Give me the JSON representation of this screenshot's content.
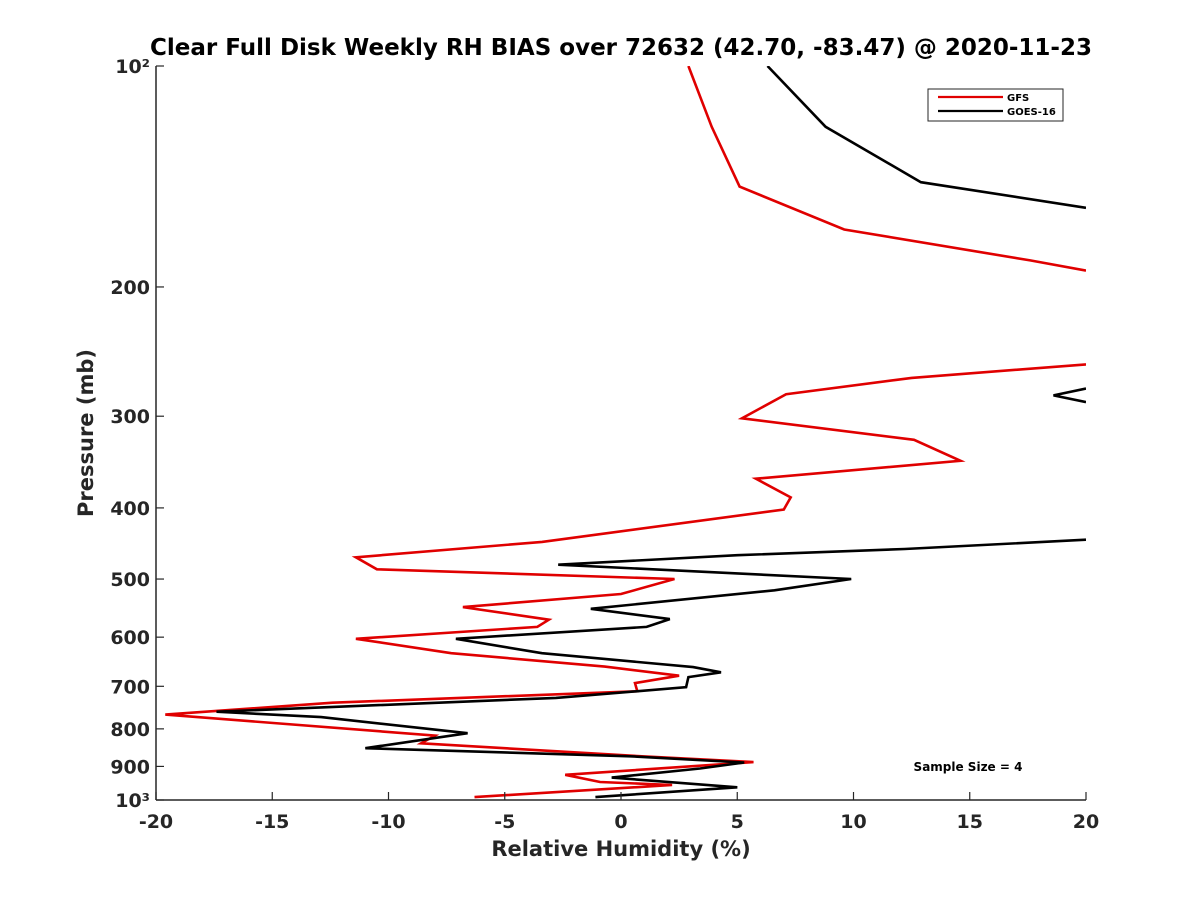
{
  "chart_data": {
    "type": "line",
    "title": "Clear Full Disk Weekly RH BIAS over 72632 (42.70, -83.47) @ 2020-11-23",
    "xlabel": "Relative Humidity (%)",
    "ylabel": "Pressure (mb)",
    "xlim": [
      -20,
      20
    ],
    "ylim": [
      100,
      1000
    ],
    "y_scale": "log",
    "y_reversed": true,
    "grid": false,
    "legend_position": "top-right",
    "x_ticks": [
      -20,
      -15,
      -10,
      -5,
      0,
      5,
      10,
      15,
      20
    ],
    "x_tick_labels": [
      "-20",
      "-15",
      "-10",
      "-5",
      "0",
      "5",
      "10",
      "15",
      "20"
    ],
    "y_ticks": [
      100,
      200,
      300,
      400,
      500,
      600,
      700,
      800,
      900,
      1000
    ],
    "y_tick_labels": [
      "10²",
      "200",
      "300",
      "400",
      "500",
      "600",
      "700",
      "800",
      "900",
      "10³"
    ],
    "annotation": "Sample Size = 4",
    "series": [
      {
        "name": "GFS",
        "color": "#e00000",
        "segments": [
          [
            {
              "x": 2.9,
              "y": 100
            },
            {
              "x": 3.9,
              "y": 121
            },
            {
              "x": 5.1,
              "y": 146
            },
            {
              "x": 9.6,
              "y": 167
            },
            {
              "x": 17.6,
              "y": 184
            },
            {
              "x": 20.0,
              "y": 190
            }
          ],
          [
            {
              "x": 20.0,
              "y": 255
            },
            {
              "x": 12.5,
              "y": 266
            },
            {
              "x": 7.1,
              "y": 280
            },
            {
              "x": 5.2,
              "y": 302
            },
            {
              "x": 12.6,
              "y": 323
            },
            {
              "x": 14.6,
              "y": 345
            },
            {
              "x": 5.8,
              "y": 365
            },
            {
              "x": 7.3,
              "y": 387
            },
            {
              "x": 7.0,
              "y": 402
            },
            {
              "x": -3.4,
              "y": 445
            },
            {
              "x": -11.4,
              "y": 467
            },
            {
              "x": -10.5,
              "y": 485
            },
            {
              "x": 2.3,
              "y": 500
            },
            {
              "x": 0.0,
              "y": 524
            },
            {
              "x": -6.8,
              "y": 546
            },
            {
              "x": -3.1,
              "y": 568
            },
            {
              "x": -3.6,
              "y": 581
            },
            {
              "x": -11.4,
              "y": 603
            },
            {
              "x": -7.3,
              "y": 631
            },
            {
              "x": -0.7,
              "y": 658
            },
            {
              "x": 2.5,
              "y": 677
            },
            {
              "x": 0.6,
              "y": 693
            },
            {
              "x": 0.7,
              "y": 711
            },
            {
              "x": -12.4,
              "y": 737
            },
            {
              "x": -19.6,
              "y": 765
            },
            {
              "x": -8.0,
              "y": 817
            },
            {
              "x": -8.6,
              "y": 837
            },
            {
              "x": 0.9,
              "y": 872
            },
            {
              "x": 5.7,
              "y": 888
            },
            {
              "x": -2.4,
              "y": 924
            },
            {
              "x": -0.9,
              "y": 945
            },
            {
              "x": 2.2,
              "y": 954
            },
            {
              "x": -6.3,
              "y": 991
            }
          ]
        ]
      },
      {
        "name": "GOES-16",
        "color": "#000000",
        "segments": [
          [
            {
              "x": 6.3,
              "y": 100
            },
            {
              "x": 8.8,
              "y": 121
            },
            {
              "x": 12.9,
              "y": 144
            },
            {
              "x": 20.0,
              "y": 156
            }
          ],
          [
            {
              "x": 20.0,
              "y": 275
            },
            {
              "x": 18.6,
              "y": 281
            },
            {
              "x": 20.0,
              "y": 287
            }
          ],
          [
            {
              "x": 20.0,
              "y": 442
            },
            {
              "x": 12.2,
              "y": 455
            },
            {
              "x": 5.0,
              "y": 464
            },
            {
              "x": -2.7,
              "y": 478
            },
            {
              "x": 9.9,
              "y": 500
            },
            {
              "x": 6.6,
              "y": 518
            },
            {
              "x": -1.3,
              "y": 549
            },
            {
              "x": 2.1,
              "y": 567
            },
            {
              "x": 1.1,
              "y": 581
            },
            {
              "x": -7.1,
              "y": 603
            },
            {
              "x": -3.4,
              "y": 631
            },
            {
              "x": 3.1,
              "y": 659
            },
            {
              "x": 4.3,
              "y": 670
            },
            {
              "x": 2.9,
              "y": 680
            },
            {
              "x": 2.8,
              "y": 702
            },
            {
              "x": -2.8,
              "y": 726
            },
            {
              "x": -17.4,
              "y": 758
            },
            {
              "x": -12.9,
              "y": 771
            },
            {
              "x": -6.6,
              "y": 811
            },
            {
              "x": -11.0,
              "y": 850
            },
            {
              "x": 0.4,
              "y": 872
            },
            {
              "x": 5.3,
              "y": 889
            },
            {
              "x": 3.4,
              "y": 906
            },
            {
              "x": -0.4,
              "y": 932
            },
            {
              "x": 5.0,
              "y": 961
            },
            {
              "x": -1.1,
              "y": 991
            }
          ]
        ]
      }
    ]
  }
}
